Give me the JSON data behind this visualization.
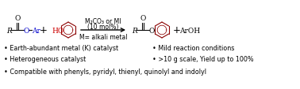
{
  "background_color": "#ffffff",
  "text_color": "#000000",
  "blue_color": "#0000cd",
  "dark_red": "#8B0000",
  "bright_red": "#cc0000",
  "bullet_points_left": [
    "Earth-abundant metal (K) catalyst",
    "Heterogeneous catalyst",
    "Compatible with phenyls, pyridyl, thienyl, quinolyl and indolyl"
  ],
  "bullet_points_right": [
    "Mild reaction conditions",
    ">10 g scale, Yield up to 100%"
  ],
  "arrow_text_line1": "M₂CO₃ or MI",
  "arrow_text_line2": "(10 mol%)",
  "arrow_text_line3": "M= alkali metal",
  "font_size_chem": 6.5,
  "font_size_bullet": 5.8,
  "fig_width": 3.78,
  "fig_height": 1.14,
  "dpi": 100
}
